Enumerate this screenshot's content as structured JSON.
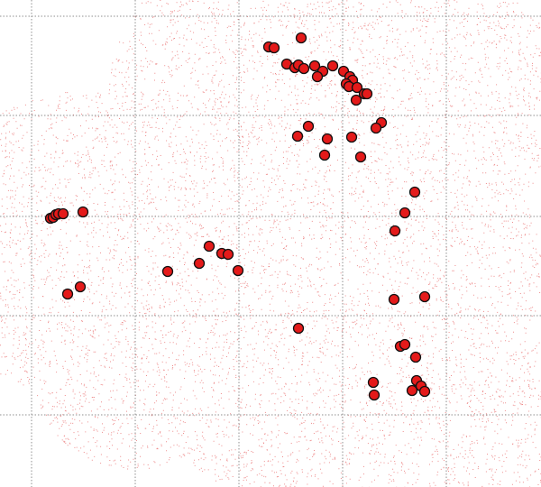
{
  "map": {
    "type": "sky-coverage-scatter",
    "background": "#ffffff",
    "coverage_dot_color": "#e03030",
    "marker_fill": "#e41a1a",
    "marker_stroke": "#111111",
    "grid_color": "#8f8f8f",
    "grid": true,
    "grid_style": "dotted",
    "axis_labels_visible": false,
    "marker_count": 70
  }
}
